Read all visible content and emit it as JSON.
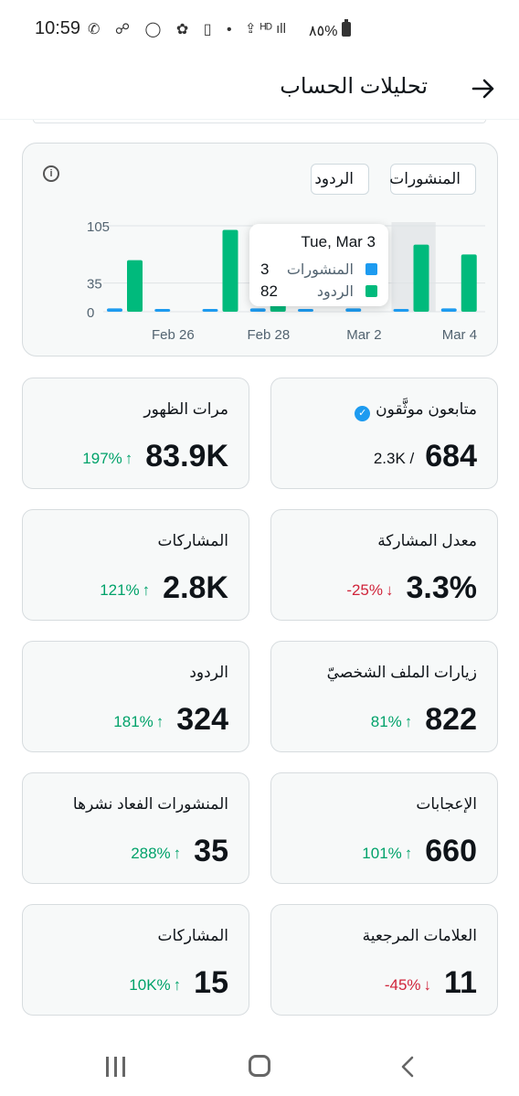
{
  "status": {
    "time": "10:59",
    "icons_left": "✆ ☍ ◯ ✿ ▯ •",
    "icons_right": "⇪ ᴴᴰ ıll",
    "battery_percent": "٨٥%"
  },
  "header": {
    "title": "تحليلات الحساب",
    "back_icon": "arrow-right-icon"
  },
  "chart_data": {
    "type": "bar",
    "categories": [
      "Feb 25",
      "Feb 26",
      "Feb 27",
      "Feb 28",
      "Mar 1",
      "Mar 2",
      "Mar 3",
      "Mar 4"
    ],
    "tick_labels": [
      "Feb 26",
      "Feb 28",
      "Mar 2",
      "Mar 4"
    ],
    "y_ticks": [
      "105",
      "35",
      "0"
    ],
    "ylim": [
      0,
      105
    ],
    "series": [
      {
        "name": "المنشورات",
        "color": "#1d9bf0",
        "values": [
          4,
          3,
          3,
          4,
          3,
          4,
          3,
          4
        ]
      },
      {
        "name": "الردود",
        "color": "#00ba7c",
        "values": [
          63,
          0,
          100,
          33,
          0,
          0,
          82,
          70
        ]
      }
    ],
    "highlighted_index": 6,
    "legend": [
      "المنشورات",
      "الردود"
    ],
    "legend_placement": "top-right"
  },
  "tooltip": {
    "date": "Tue, Mar 3",
    "rows": [
      {
        "label": "المنشورات",
        "value": "3"
      },
      {
        "label": "الردود",
        "value": "82"
      }
    ]
  },
  "stats": [
    {
      "title": "متابعون موثَّقون",
      "value": "684",
      "secondary": "2.3K /"
    },
    {
      "title": "مرات الظهور",
      "value": "83.9K",
      "change": "197%",
      "direction": "up"
    },
    {
      "title": "معدل المشاركة",
      "value": "3.3%",
      "change": "-25%",
      "direction": "down"
    },
    {
      "title": "المشاركات",
      "value": "2.8K",
      "change": "121%",
      "direction": "up"
    },
    {
      "title": "زيارات الملف الشخصيّ",
      "value": "822",
      "change": "81%",
      "direction": "up"
    },
    {
      "title": "الردود",
      "value": "324",
      "change": "181%",
      "direction": "up"
    },
    {
      "title": "الإعجابات",
      "value": "660",
      "change": "101%",
      "direction": "up"
    },
    {
      "title": "المنشورات الفعاد نشرها",
      "value": "35",
      "change": "288%",
      "direction": "up"
    },
    {
      "title": "العلامات المرجعية",
      "value": "11",
      "change": "-45%",
      "direction": "down"
    },
    {
      "title": "المشاركات",
      "value": "15",
      "change": "10K%",
      "direction": "up"
    }
  ],
  "arrows": {
    "up": "↑",
    "down": "↓"
  },
  "colors": {
    "up": "#00a26a",
    "down": "#d0243a",
    "posts": "#1d9bf0",
    "replies": "#00ba7c"
  }
}
